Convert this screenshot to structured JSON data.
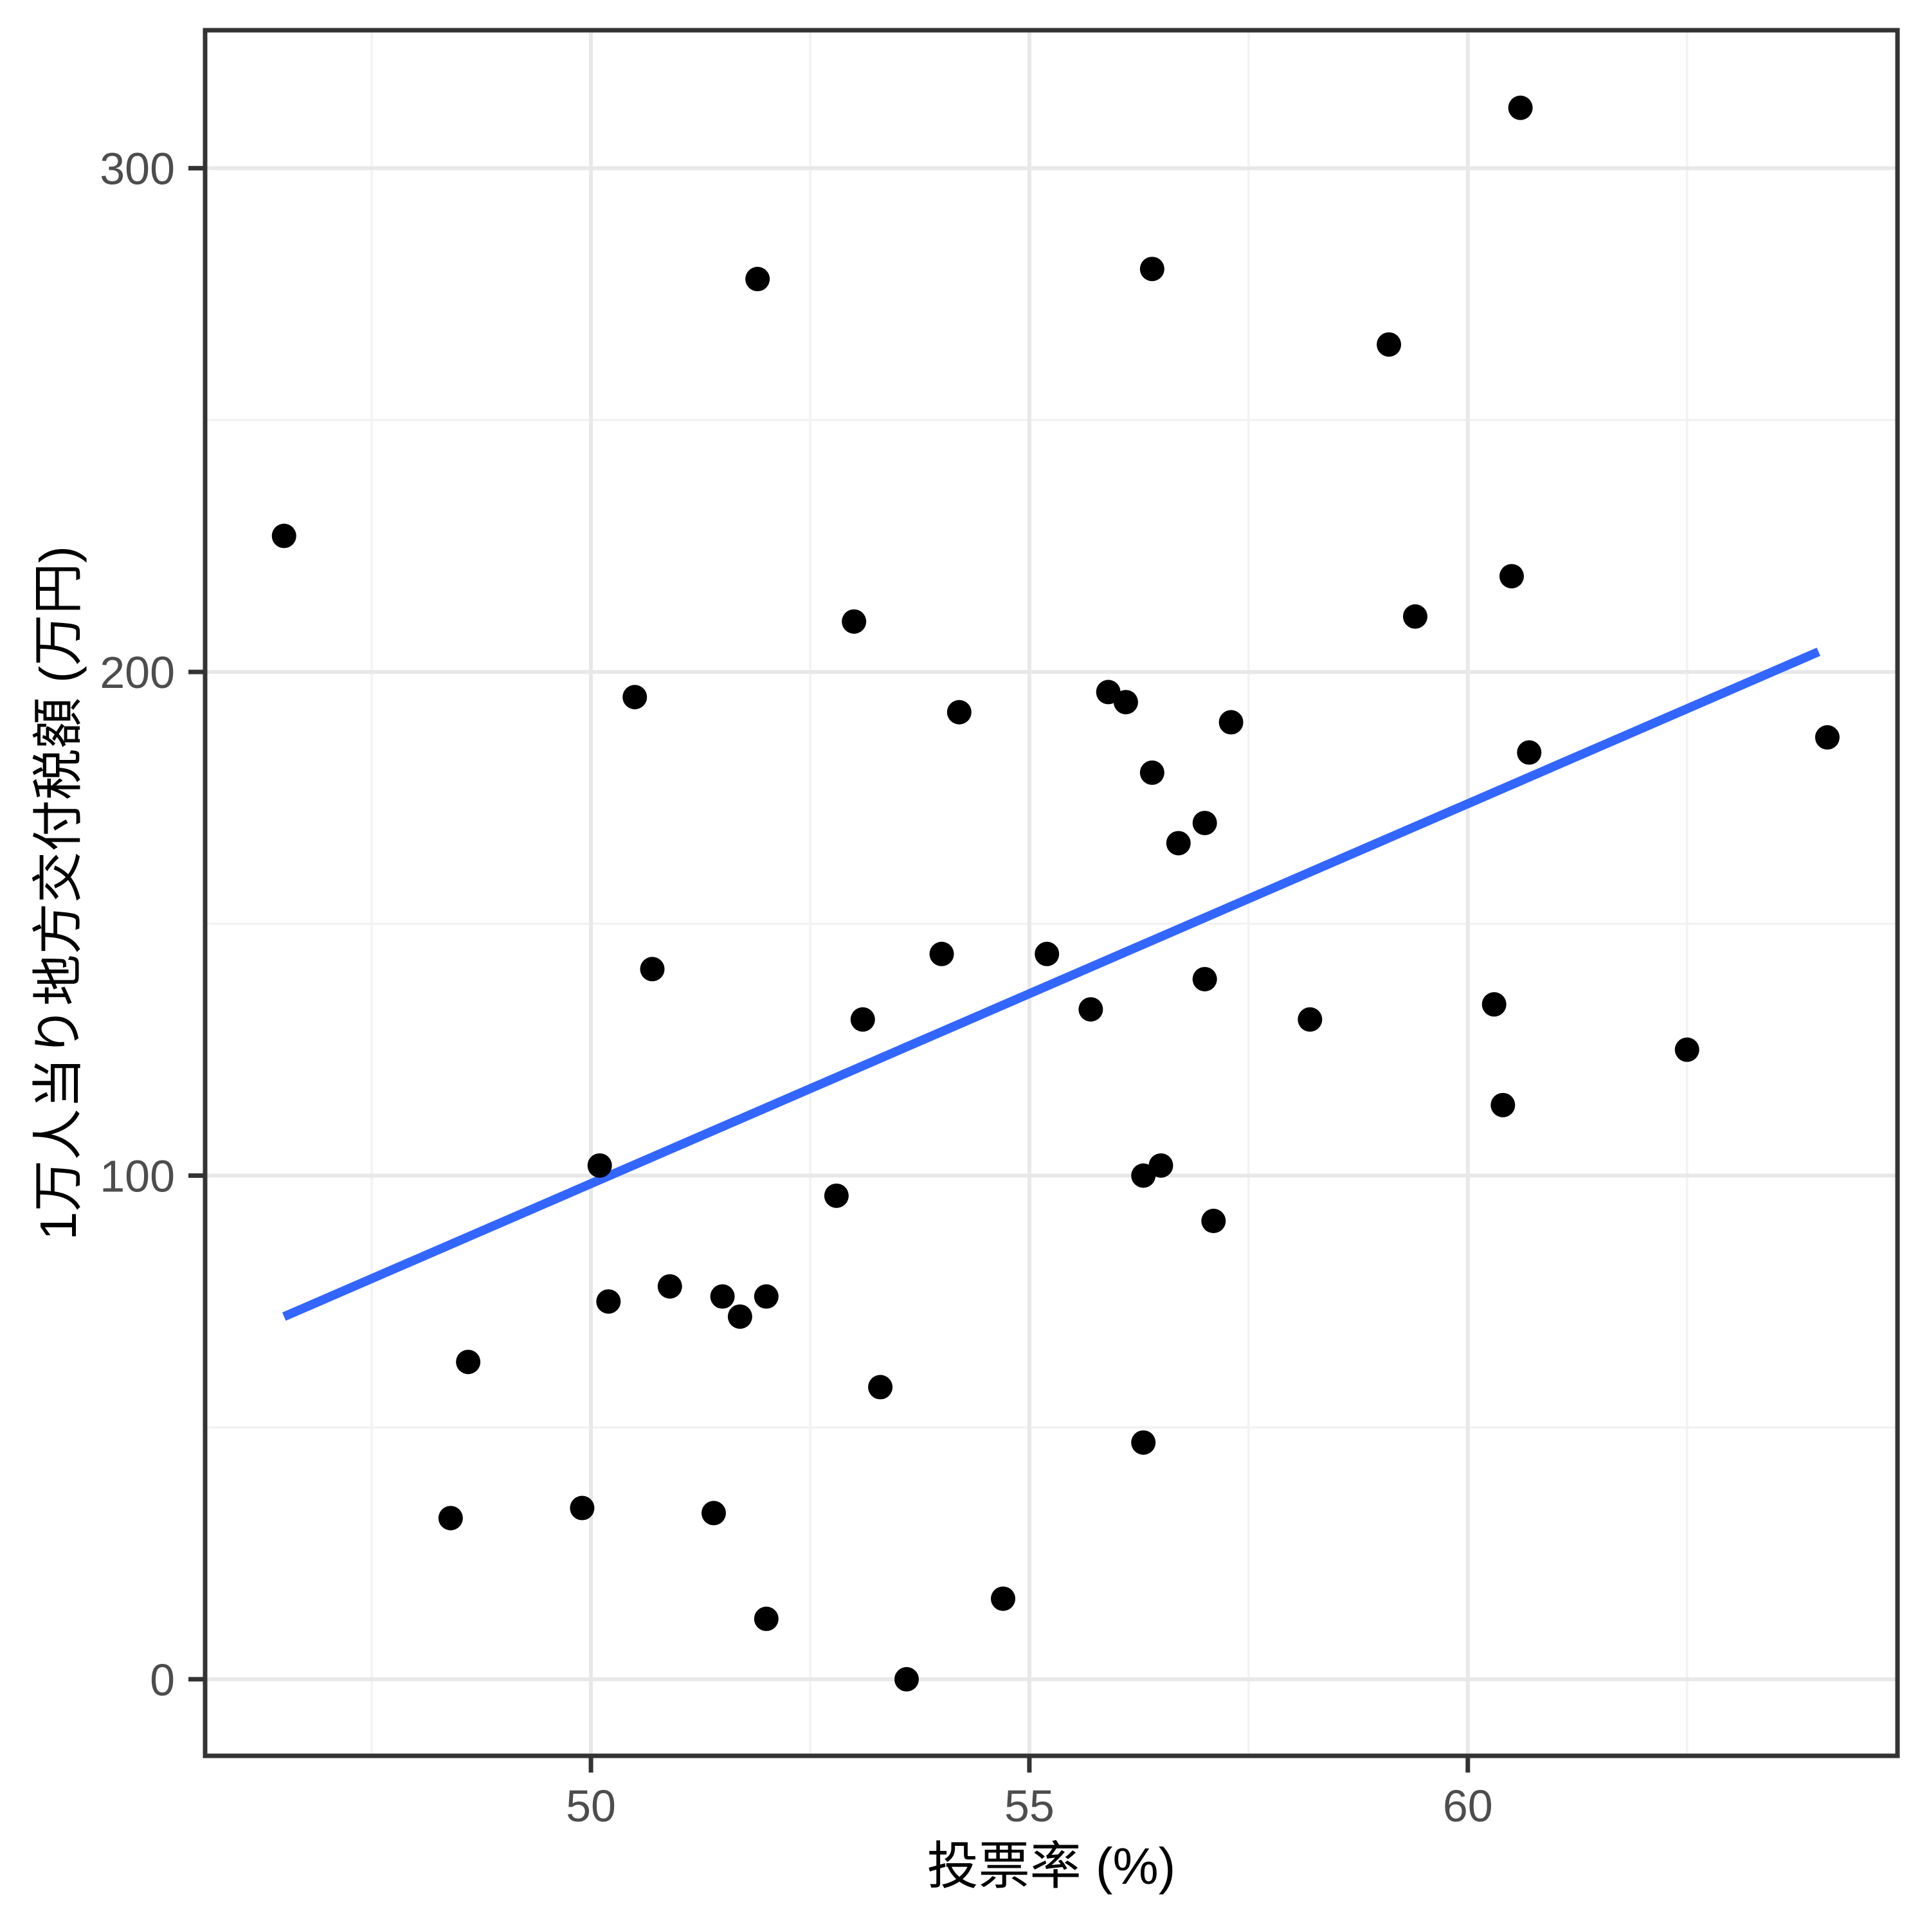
{
  "chart_data": {
    "type": "scatter",
    "title": "",
    "xlabel": "投票率 (%)",
    "ylabel": "1万人当り地方交付税額 (万円)",
    "x_ticks": [
      50,
      55,
      60
    ],
    "y_ticks": [
      0,
      100,
      200,
      300
    ],
    "x_minor_gridlines": [
      47.5,
      52.5,
      57.5,
      62.5
    ],
    "y_minor_gridlines": [
      50,
      150,
      250
    ],
    "xlim": [
      45.6,
      64.9
    ],
    "ylim": [
      -15.2,
      327.4
    ],
    "grid": "on",
    "legend": "none",
    "points": [
      [
        46.5,
        227
      ],
      [
        48.4,
        32
      ],
      [
        48.6,
        63
      ],
      [
        49.9,
        34
      ],
      [
        50.1,
        102
      ],
      [
        50.2,
        75
      ],
      [
        50.5,
        195
      ],
      [
        50.7,
        141
      ],
      [
        50.9,
        78
      ],
      [
        51.4,
        33
      ],
      [
        51.5,
        76
      ],
      [
        51.7,
        72
      ],
      [
        51.9,
        278
      ],
      [
        52.0,
        12
      ],
      [
        52.0,
        76
      ],
      [
        52.8,
        96
      ],
      [
        53.0,
        210
      ],
      [
        53.1,
        131
      ],
      [
        53.3,
        58
      ],
      [
        53.6,
        0
      ],
      [
        54.0,
        144
      ],
      [
        54.2,
        192
      ],
      [
        54.7,
        16
      ],
      [
        55.2,
        144
      ],
      [
        55.7,
        133
      ],
      [
        55.9,
        196
      ],
      [
        56.1,
        194
      ],
      [
        56.3,
        47
      ],
      [
        56.3,
        100
      ],
      [
        56.4,
        180
      ],
      [
        56.4,
        280
      ],
      [
        56.5,
        102
      ],
      [
        56.7,
        166
      ],
      [
        57.0,
        139
      ],
      [
        57.0,
        170
      ],
      [
        57.1,
        91
      ],
      [
        57.3,
        190
      ],
      [
        58.2,
        131
      ],
      [
        59.1,
        265
      ],
      [
        59.4,
        211
      ],
      [
        60.3,
        134
      ],
      [
        60.4,
        114
      ],
      [
        60.5,
        219
      ],
      [
        60.6,
        312
      ],
      [
        60.7,
        184
      ],
      [
        62.5,
        125
      ],
      [
        64.1,
        187
      ]
    ],
    "trend_line": {
      "type": "linear",
      "x1": 46.5,
      "y1": 72,
      "x2": 64.0,
      "y2": 204
    },
    "colors": {
      "point": "#000000",
      "trend": "#3366FF",
      "grid_major": "#e8e8e8",
      "grid_minor": "#f2f2f2",
      "panel_border": "#333333",
      "tick": "#333333",
      "tick_label": "#4d4d4d",
      "axis_title": "#000000",
      "background": "#ffffff"
    }
  }
}
